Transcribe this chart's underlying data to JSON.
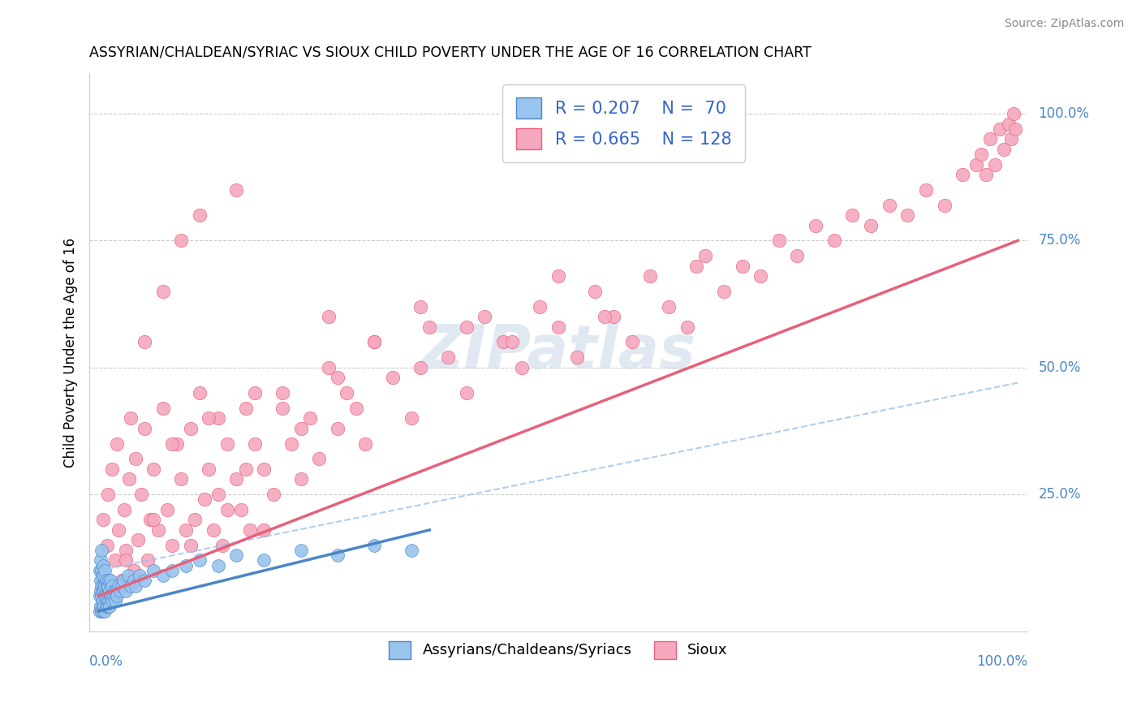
{
  "title": "ASSYRIAN/CHALDEAN/SYRIAC VS SIOUX CHILD POVERTY UNDER THE AGE OF 16 CORRELATION CHART",
  "source": "Source: ZipAtlas.com",
  "ylabel": "Child Poverty Under the Age of 16",
  "legend_label1": "Assyrians/Chaldeans/Syriacs",
  "legend_label2": "Sioux",
  "r1": 0.207,
  "n1": 70,
  "r2": 0.665,
  "n2": 128,
  "color_blue": "#99C4ED",
  "color_pink": "#F5A8BE",
  "trendline_blue_color": "#4A86C8",
  "trendline_pink_color": "#E8607A",
  "trendline_dashed_color": "#99C4ED",
  "watermark_color": "#C8D8E8",
  "blue_points_x": [
    0.001,
    0.001,
    0.001,
    0.002,
    0.002,
    0.002,
    0.002,
    0.003,
    0.003,
    0.003,
    0.003,
    0.003,
    0.004,
    0.004,
    0.004,
    0.005,
    0.005,
    0.005,
    0.005,
    0.006,
    0.006,
    0.006,
    0.007,
    0.007,
    0.007,
    0.007,
    0.008,
    0.008,
    0.008,
    0.009,
    0.009,
    0.01,
    0.01,
    0.011,
    0.011,
    0.012,
    0.012,
    0.013,
    0.013,
    0.014,
    0.015,
    0.015,
    0.016,
    0.017,
    0.018,
    0.019,
    0.02,
    0.022,
    0.023,
    0.025,
    0.027,
    0.03,
    0.032,
    0.035,
    0.038,
    0.04,
    0.045,
    0.05,
    0.06,
    0.07,
    0.08,
    0.095,
    0.11,
    0.13,
    0.15,
    0.18,
    0.22,
    0.26,
    0.3,
    0.34
  ],
  "blue_points_y": [
    0.02,
    0.05,
    0.1,
    0.03,
    0.06,
    0.08,
    0.12,
    0.02,
    0.05,
    0.07,
    0.1,
    0.14,
    0.03,
    0.06,
    0.09,
    0.02,
    0.04,
    0.07,
    0.11,
    0.03,
    0.06,
    0.09,
    0.02,
    0.05,
    0.07,
    0.1,
    0.03,
    0.05,
    0.08,
    0.04,
    0.07,
    0.03,
    0.07,
    0.04,
    0.08,
    0.03,
    0.06,
    0.05,
    0.08,
    0.05,
    0.04,
    0.07,
    0.05,
    0.06,
    0.04,
    0.06,
    0.05,
    0.07,
    0.06,
    0.07,
    0.08,
    0.06,
    0.09,
    0.07,
    0.08,
    0.07,
    0.09,
    0.08,
    0.1,
    0.09,
    0.1,
    0.11,
    0.12,
    0.11,
    0.13,
    0.12,
    0.14,
    0.13,
    0.15,
    0.14
  ],
  "pink_points_x": [
    0.003,
    0.005,
    0.007,
    0.009,
    0.01,
    0.012,
    0.015,
    0.018,
    0.02,
    0.022,
    0.025,
    0.028,
    0.03,
    0.033,
    0.035,
    0.038,
    0.04,
    0.043,
    0.046,
    0.05,
    0.053,
    0.056,
    0.06,
    0.065,
    0.07,
    0.075,
    0.08,
    0.085,
    0.09,
    0.095,
    0.1,
    0.105,
    0.11,
    0.115,
    0.12,
    0.125,
    0.13,
    0.135,
    0.14,
    0.15,
    0.155,
    0.16,
    0.165,
    0.17,
    0.18,
    0.19,
    0.2,
    0.21,
    0.22,
    0.23,
    0.24,
    0.25,
    0.26,
    0.27,
    0.28,
    0.29,
    0.3,
    0.32,
    0.34,
    0.36,
    0.38,
    0.4,
    0.42,
    0.44,
    0.46,
    0.48,
    0.5,
    0.52,
    0.54,
    0.56,
    0.58,
    0.6,
    0.62,
    0.64,
    0.66,
    0.68,
    0.7,
    0.72,
    0.74,
    0.76,
    0.78,
    0.8,
    0.82,
    0.84,
    0.86,
    0.88,
    0.9,
    0.92,
    0.94,
    0.955,
    0.96,
    0.965,
    0.97,
    0.975,
    0.98,
    0.985,
    0.99,
    0.993,
    0.995,
    0.997,
    0.06,
    0.08,
    0.1,
    0.12,
    0.14,
    0.16,
    0.18,
    0.2,
    0.05,
    0.07,
    0.09,
    0.11,
    0.15,
    0.25,
    0.35,
    0.45,
    0.55,
    0.65,
    0.03,
    0.04,
    0.13,
    0.17,
    0.22,
    0.26,
    0.3,
    0.35,
    0.4,
    0.5
  ],
  "pink_points_y": [
    0.1,
    0.2,
    0.05,
    0.15,
    0.25,
    0.08,
    0.3,
    0.12,
    0.35,
    0.18,
    0.08,
    0.22,
    0.14,
    0.28,
    0.4,
    0.1,
    0.32,
    0.16,
    0.25,
    0.38,
    0.12,
    0.2,
    0.3,
    0.18,
    0.42,
    0.22,
    0.15,
    0.35,
    0.28,
    0.18,
    0.38,
    0.2,
    0.45,
    0.24,
    0.3,
    0.18,
    0.4,
    0.15,
    0.35,
    0.28,
    0.22,
    0.42,
    0.18,
    0.35,
    0.3,
    0.25,
    0.45,
    0.35,
    0.28,
    0.4,
    0.32,
    0.5,
    0.38,
    0.45,
    0.42,
    0.35,
    0.55,
    0.48,
    0.4,
    0.58,
    0.52,
    0.45,
    0.6,
    0.55,
    0.5,
    0.62,
    0.58,
    0.52,
    0.65,
    0.6,
    0.55,
    0.68,
    0.62,
    0.58,
    0.72,
    0.65,
    0.7,
    0.68,
    0.75,
    0.72,
    0.78,
    0.75,
    0.8,
    0.78,
    0.82,
    0.8,
    0.85,
    0.82,
    0.88,
    0.9,
    0.92,
    0.88,
    0.95,
    0.9,
    0.97,
    0.93,
    0.98,
    0.95,
    1.0,
    0.97,
    0.2,
    0.35,
    0.15,
    0.4,
    0.22,
    0.3,
    0.18,
    0.42,
    0.55,
    0.65,
    0.75,
    0.8,
    0.85,
    0.6,
    0.5,
    0.55,
    0.6,
    0.7,
    0.12,
    0.08,
    0.25,
    0.45,
    0.38,
    0.48,
    0.55,
    0.62,
    0.58,
    0.68
  ]
}
